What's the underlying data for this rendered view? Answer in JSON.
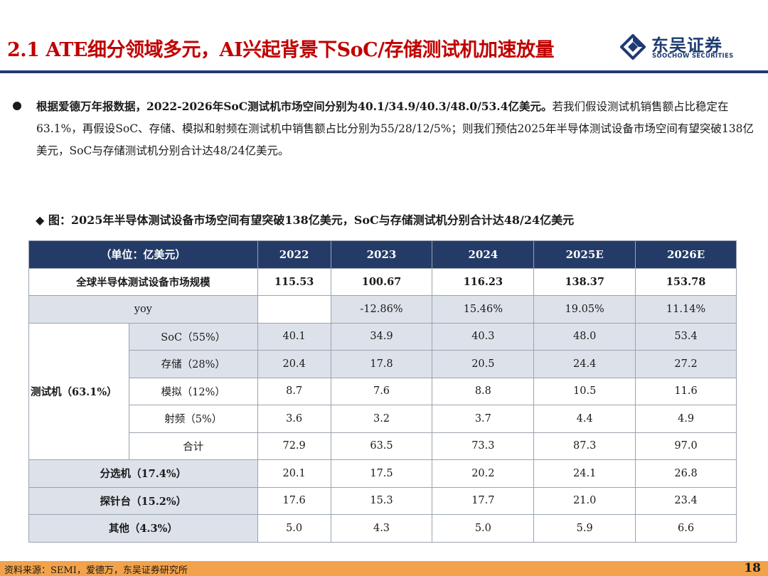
{
  "header": {
    "title": "2.1 ATE细分领域多元，AI兴起背景下SoC/存储测试机加速放量",
    "logo_cn": "东吴证券",
    "logo_en": "SOOCHOW SECURITIES"
  },
  "bullet": {
    "bold_text": "根据爱德万年报数据，2022-2026年SoC测试机市场空间分别为40.1/34.9/40.3/48.0/53.4亿美元。",
    "normal_text": "若我们假设测试机销售额占比稳定在63.1%，再假设SoC、存储、模拟和射频在测试机中销售额占比分别为55/28/12/5%；则我们预估2025年半导体测试设备市场空间有望突破138亿美元，SoC与存储测试机分别合计达48/24亿美元。"
  },
  "figure": {
    "caption": "◆ 图：2025年半导体测试设备市场空间有望突破138亿美元，SoC与存储测试机分别合计达48/24亿美元"
  },
  "table": {
    "unit_header": "（单位：亿美元）",
    "years": [
      "2022",
      "2023",
      "2024",
      "2025E",
      "2026E"
    ],
    "market_label": "全球半导体测试设备市场规模",
    "market_values": [
      "115.53",
      "100.67",
      "116.23",
      "138.37",
      "153.78"
    ],
    "yoy_label": "yoy",
    "yoy_values": [
      "",
      "-12.86%",
      "15.46%",
      "19.05%",
      "11.14%"
    ],
    "tester_group_label": "测试机（63.1%）",
    "tester_rows": [
      {
        "label": "SoC（55%）",
        "values": [
          "40.1",
          "34.9",
          "40.3",
          "48.0",
          "53.4"
        ]
      },
      {
        "label": "存储（28%）",
        "values": [
          "20.4",
          "17.8",
          "20.5",
          "24.4",
          "27.2"
        ]
      },
      {
        "label": "模拟（12%）",
        "values": [
          "8.7",
          "7.6",
          "8.8",
          "10.5",
          "11.6"
        ]
      },
      {
        "label": "射频（5%）",
        "values": [
          "3.6",
          "3.2",
          "3.7",
          "4.4",
          "4.9"
        ]
      },
      {
        "label": "合计",
        "values": [
          "72.9",
          "63.5",
          "73.3",
          "87.3",
          "97.0"
        ]
      }
    ],
    "other_rows": [
      {
        "label": "分选机（17.4%）",
        "values": [
          "20.1",
          "17.5",
          "20.2",
          "24.1",
          "26.8"
        ]
      },
      {
        "label": "探针台（15.2%）",
        "values": [
          "17.6",
          "15.3",
          "17.7",
          "21.0",
          "23.4"
        ]
      },
      {
        "label": "其他（4.3%）",
        "values": [
          "5.0",
          "4.3",
          "5.0",
          "5.9",
          "6.6"
        ]
      }
    ]
  },
  "footer": {
    "source": "资料来源：SEMI，爱德万，东吴证券研究所",
    "page_number": "18"
  },
  "colors": {
    "title_red": "#c00000",
    "brand_navy": "#1f3b73",
    "table_header": "#243b67",
    "row_shade": "#dde2ea",
    "footer_orange": "#f2a24a"
  }
}
